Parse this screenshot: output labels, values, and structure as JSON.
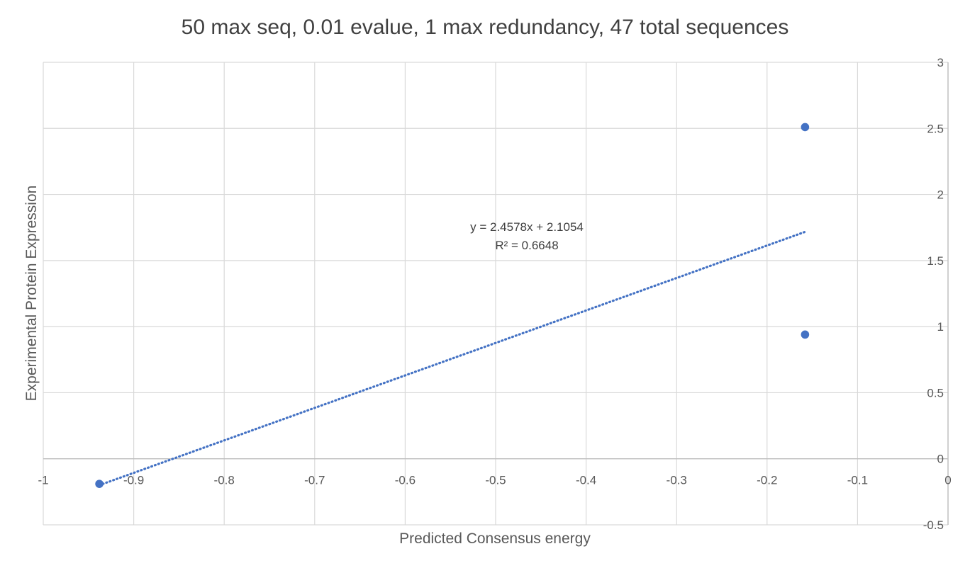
{
  "chart_data": {
    "type": "scatter",
    "title": "50 max seq, 0.01 evalue, 1 max redundancy, 47 total sequences",
    "xlabel": "Predicted Consensus energy",
    "ylabel": "Experimental Protein Expression",
    "xlim": [
      -1,
      0
    ],
    "ylim": [
      -0.5,
      3
    ],
    "x_ticks": [
      -1,
      -0.9,
      -0.8,
      -0.7,
      -0.6,
      -0.5,
      -0.4,
      -0.3,
      -0.2,
      -0.1,
      0
    ],
    "x_tick_labels": [
      "-1",
      "-0.9",
      "-0.8",
      "-0.7",
      "-0.6",
      "-0.5",
      "-0.4",
      "-0.3",
      "-0.2",
      "-0.1",
      "0"
    ],
    "y_ticks": [
      -0.5,
      0,
      0.5,
      1,
      1.5,
      2,
      2.5,
      3
    ],
    "y_tick_labels": [
      "-0.5",
      "0",
      "0.5",
      "1",
      "1.5",
      "2",
      "2.5",
      "3"
    ],
    "grid": true,
    "legend": "none",
    "series": [
      {
        "points": [
          {
            "x": -0.938,
            "y": -0.19
          },
          {
            "x": -0.158,
            "y": 2.51
          },
          {
            "x": -0.158,
            "y": 0.94
          }
        ],
        "color": "#4472c4"
      }
    ],
    "trendline": {
      "type": "linear",
      "slope": 2.4578,
      "intercept": 2.1054,
      "x_range": [
        -0.938,
        -0.158
      ],
      "style": "dotted",
      "color": "#4472c4",
      "equation_label": "y = 2.4578x + 2.1054",
      "r2_label": "R² = 0.6648"
    },
    "colors": {
      "grid": "#d9d9d9",
      "axis": "#bfbfbf",
      "marker": "#4472c4"
    }
  }
}
